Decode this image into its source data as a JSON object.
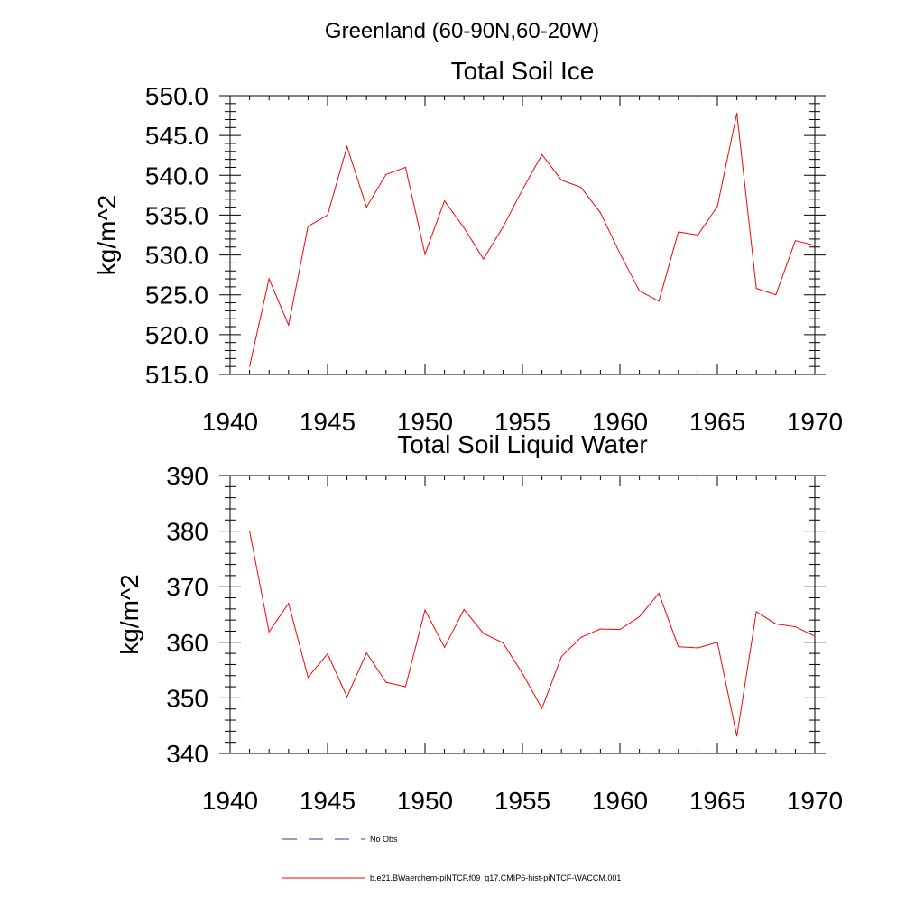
{
  "suptitle": "Greenland (60-90N,60-20W)",
  "line_color": "#ff0000",
  "axis_color": "#000000",
  "obs_color": "#3a3a9a",
  "legend": {
    "obs_label": "No Obs",
    "model_label": "b.e21.BWaerchem-piNTCF.f09_g17.CMIP6-hist-piNTCF-WACCM.001"
  },
  "chart_data": [
    {
      "type": "line",
      "title": "Total Soil Ice",
      "ylabel": "kg/m^2",
      "xlabel": "",
      "xlim": [
        1940,
        1970
      ],
      "ylim": [
        515,
        550
      ],
      "xticks": [
        1940,
        1945,
        1950,
        1955,
        1960,
        1965,
        1970
      ],
      "yticks": [
        515,
        520,
        525,
        530,
        535,
        540,
        545,
        550
      ],
      "ytick_labels": [
        "515.0",
        "520.0",
        "525.0",
        "530.0",
        "535.0",
        "540.0",
        "545.0",
        "550.0"
      ],
      "grid": false,
      "x": [
        1941,
        1942,
        1943,
        1944,
        1945,
        1946,
        1947,
        1948,
        1949,
        1950,
        1951,
        1952,
        1953,
        1954,
        1955,
        1956,
        1957,
        1958,
        1959,
        1960,
        1961,
        1962,
        1963,
        1964,
        1965,
        1966,
        1967,
        1968,
        1969,
        1970
      ],
      "series": [
        {
          "values": [
            516.0,
            527.0,
            521.2,
            533.6,
            535.0,
            543.6,
            536.0,
            540.1,
            541.0,
            530.1,
            536.8,
            533.4,
            529.5,
            533.5,
            538.2,
            542.6,
            539.4,
            538.5,
            535.3,
            530.2,
            525.5,
            524.2,
            532.9,
            532.5,
            536.1,
            547.8,
            525.8,
            525.0,
            531.8,
            531.2
          ]
        }
      ]
    },
    {
      "type": "line",
      "title": "Total Soil Liquid Water",
      "ylabel": "kg/m^2",
      "xlabel": "",
      "xlim": [
        1940,
        1970
      ],
      "ylim": [
        340,
        390
      ],
      "xticks": [
        1940,
        1945,
        1950,
        1955,
        1960,
        1965,
        1970
      ],
      "yticks": [
        340,
        350,
        360,
        370,
        380,
        390
      ],
      "ytick_labels": [
        "340",
        "350",
        "360",
        "370",
        "380",
        "390"
      ],
      "grid": false,
      "x": [
        1941,
        1942,
        1943,
        1944,
        1945,
        1946,
        1947,
        1948,
        1949,
        1950,
        1951,
        1952,
        1953,
        1954,
        1955,
        1956,
        1957,
        1958,
        1959,
        1960,
        1961,
        1962,
        1963,
        1964,
        1965,
        1966,
        1967,
        1968,
        1969,
        1970
      ],
      "series": [
        {
          "values": [
            380.0,
            361.9,
            367.0,
            353.7,
            357.9,
            350.2,
            358.1,
            352.8,
            352.0,
            365.8,
            359.1,
            365.9,
            361.6,
            359.9,
            354.4,
            348.1,
            357.4,
            360.9,
            362.4,
            362.3,
            364.6,
            368.8,
            359.2,
            359.0,
            360.0,
            343.1,
            365.5,
            363.3,
            362.8,
            361.1
          ]
        }
      ]
    }
  ]
}
